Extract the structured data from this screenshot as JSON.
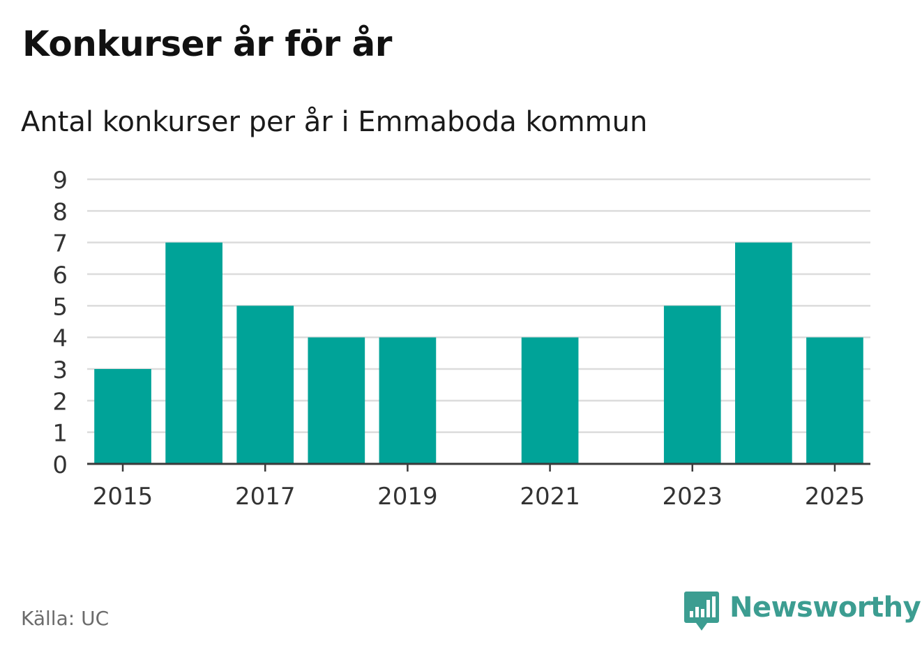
{
  "title": "Konkurser år för år",
  "subtitle": "Antal konkurser per år i Emmaboda kommun",
  "source": "Källa: UC",
  "brand": {
    "name": "Newsworthy",
    "icon": "bar-chart-speech-bubble-icon"
  },
  "colors": {
    "bar": "#00a398",
    "grid": "#dcdcdc",
    "axis": "#3a3a3a",
    "brand": "#3c9d91"
  },
  "chart_data": {
    "type": "bar",
    "title": "Konkurser år för år",
    "subtitle": "Antal konkurser per år i Emmaboda kommun",
    "xlabel": "",
    "ylabel": "",
    "categories": [
      "2015",
      "2016",
      "2017",
      "2018",
      "2019",
      "2020",
      "2021",
      "2022",
      "2023",
      "2024",
      "2025"
    ],
    "values": [
      3,
      7,
      5,
      4,
      4,
      0,
      4,
      0,
      5,
      7,
      4
    ],
    "x_tick_labels": [
      "2015",
      "2017",
      "2019",
      "2021",
      "2023",
      "2025"
    ],
    "y_ticks": [
      0,
      1,
      2,
      3,
      4,
      5,
      6,
      7,
      8,
      9
    ],
    "ylim": [
      0,
      9
    ],
    "grid": true,
    "legend": "none"
  }
}
